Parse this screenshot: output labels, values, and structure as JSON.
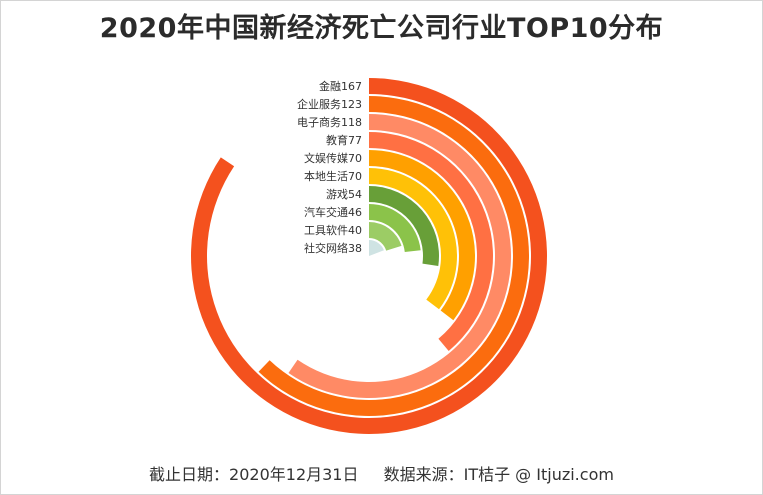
{
  "title": "2020年中国新经济死亡公司行业TOP10分布",
  "footer": {
    "date_note": "截止日期：2020年12月31日",
    "source_note": "数据来源：IT桔子 @ Itjuzi.com"
  },
  "chart_data": {
    "type": "radial-bar",
    "title": "2020年中国新经济死亡公司行业TOP10分布",
    "categories": [
      "金融",
      "企业服务",
      "电子商务",
      "教育",
      "文娱传媒",
      "本地生活",
      "游戏",
      "汽车交通",
      "工具软件",
      "社交网络"
    ],
    "values": [
      167,
      123,
      118,
      77,
      70,
      70,
      54,
      46,
      40,
      38
    ],
    "labels": [
      "金融167",
      "企业服务123",
      "电子商务118",
      "教育77",
      "文娱传媒70",
      "本地生活70",
      "游戏54",
      "汽车交通46",
      "工具软件40",
      "社交网络38"
    ],
    "colors": [
      "#f4511e",
      "#fb6c0e",
      "#ff8a65",
      "#ff7043",
      "#ffa000",
      "#ffc107",
      "#689f38",
      "#8bc34a",
      "#9ccc65",
      "#cfe3e3"
    ],
    "max_angle_value": 198
  }
}
